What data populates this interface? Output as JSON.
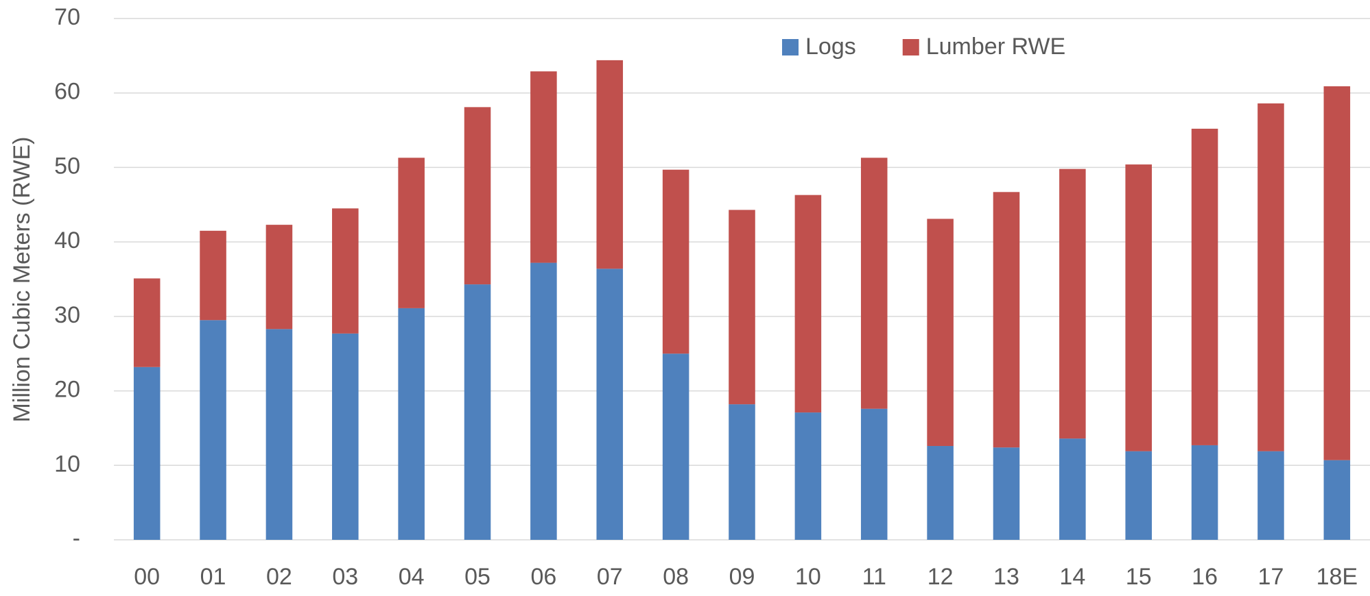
{
  "chart_data": {
    "type": "stacked_bar",
    "y_label": "Million Cubic Meters (RWE)",
    "categories": [
      "00",
      "01",
      "02",
      "03",
      "04",
      "05",
      "06",
      "07",
      "08",
      "09",
      "10",
      "11",
      "12",
      "13",
      "14",
      "15",
      "16",
      "17",
      "18E"
    ],
    "series": [
      {
        "name": "Logs",
        "color": "#4f81bd",
        "values": [
          23.2,
          29.5,
          28.3,
          27.7,
          31.1,
          34.3,
          37.2,
          36.4,
          25.0,
          18.2,
          17.1,
          17.6,
          12.6,
          12.4,
          13.6,
          11.9,
          12.7,
          11.9,
          10.7
        ]
      },
      {
        "name": "Lumber RWE",
        "color": "#c0504d",
        "values": [
          11.9,
          12.0,
          14.0,
          16.8,
          20.2,
          23.8,
          25.7,
          28.0,
          24.7,
          26.1,
          29.2,
          33.7,
          30.5,
          34.3,
          36.2,
          38.5,
          42.5,
          46.7,
          50.2
        ]
      }
    ],
    "ylim": [
      0,
      70
    ],
    "yticks": [
      {
        "value": 0,
        "label": "-"
      },
      10,
      20,
      30,
      40,
      50,
      60,
      70
    ],
    "grid": true,
    "legend": "top"
  }
}
